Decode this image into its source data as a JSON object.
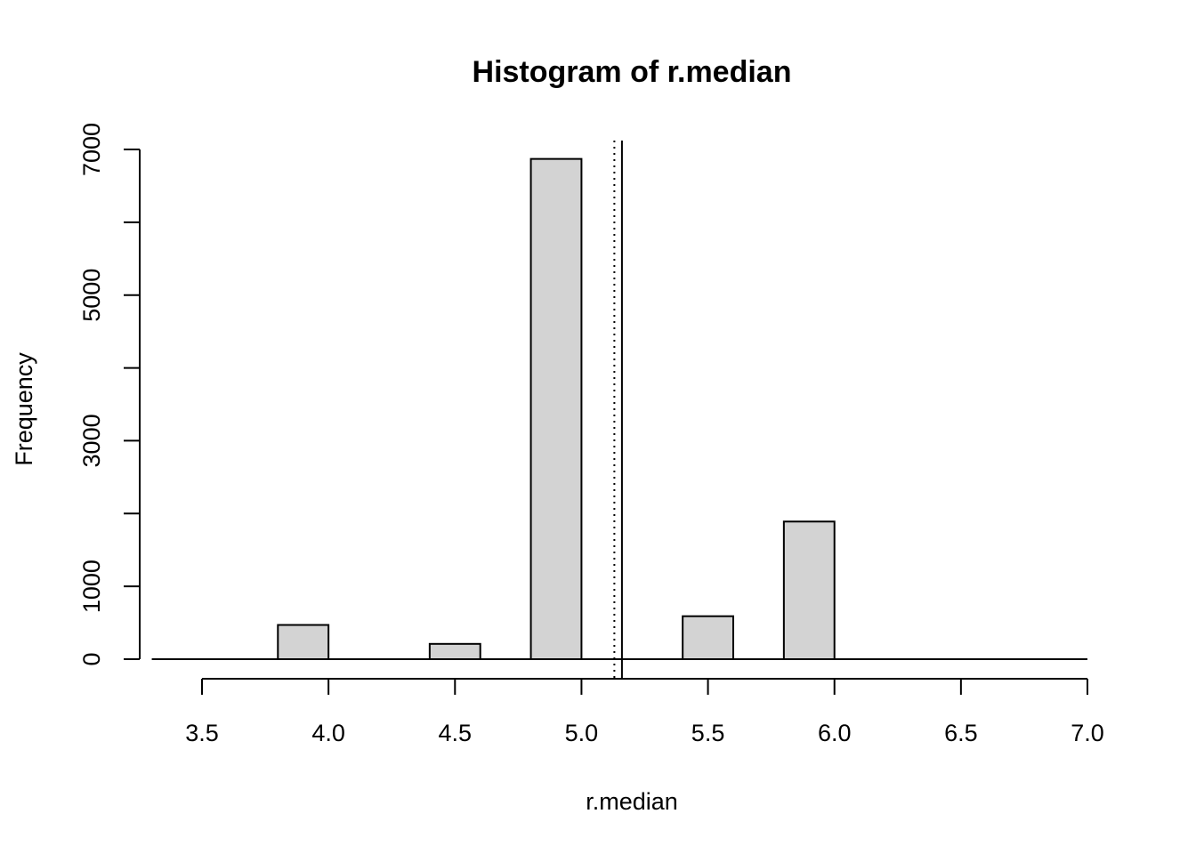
{
  "chart_data": {
    "type": "bar",
    "title": "Histogram of r.median",
    "xlabel": "r.median",
    "ylabel": "Frequency",
    "bins": [
      {
        "from": 3.8,
        "to": 4.0,
        "count": 470
      },
      {
        "from": 4.4,
        "to": 4.6,
        "count": 210
      },
      {
        "from": 4.8,
        "to": 5.0,
        "count": 6870
      },
      {
        "from": 5.4,
        "to": 5.6,
        "count": 590
      },
      {
        "from": 5.8,
        "to": 6.0,
        "count": 1890
      }
    ],
    "xlim": [
      3.5,
      7.0
    ],
    "ylim": [
      0,
      7000
    ],
    "x_ticks": [
      "3.5",
      "4.0",
      "4.5",
      "5.0",
      "5.5",
      "6.0",
      "6.5",
      "7.0"
    ],
    "y_ticks": [
      "0",
      "1000",
      "3000",
      "5000",
      "7000"
    ],
    "y_minor_ticks": [
      2000,
      4000,
      6000
    ],
    "baseline": {
      "from": 3.4,
      "to": 7.0
    },
    "vlines": [
      {
        "x": 5.13,
        "style": "dotted"
      },
      {
        "x": 5.16,
        "style": "solid"
      }
    ],
    "bar_fill": "#d3d3d3",
    "bar_stroke": "#000000",
    "grid": false
  }
}
